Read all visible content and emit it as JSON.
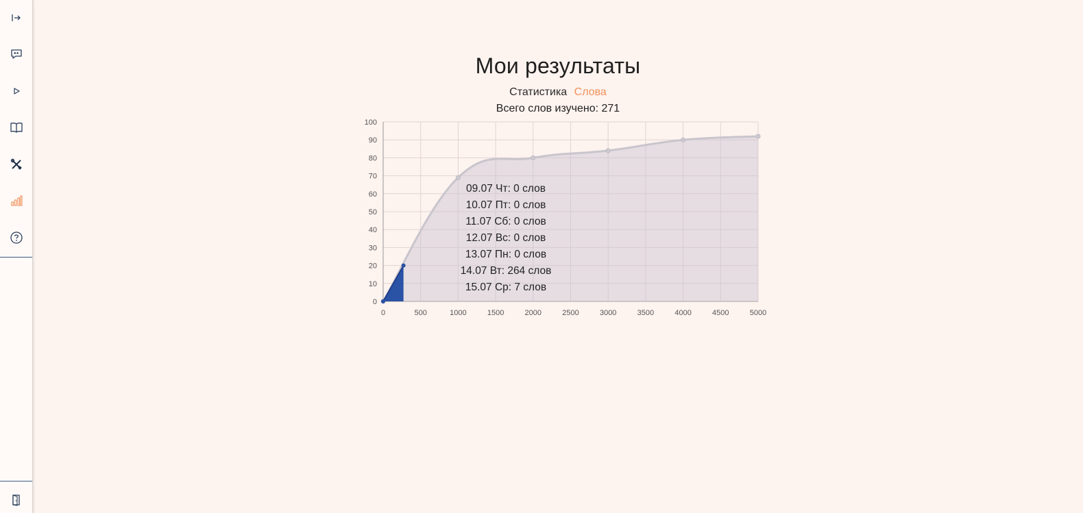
{
  "sidebar": {
    "items": [
      {
        "icon": "expand-sidebar-icon"
      },
      {
        "icon": "chat-quote-icon"
      },
      {
        "icon": "play-icon"
      },
      {
        "icon": "book-icon"
      },
      {
        "icon": "tools-icon"
      },
      {
        "icon": "bar-chart-icon",
        "active": true
      },
      {
        "icon": "help-icon"
      }
    ],
    "bottom": {
      "icon": "exit-door-icon"
    }
  },
  "colors": {
    "accent": "#f0925a",
    "primary": "#2a52a5",
    "sidebar_line": "#3a5a80"
  },
  "page": {
    "title": "Мои результаты",
    "tabs": [
      {
        "label": "Статистика",
        "active": false
      },
      {
        "label": "Слова",
        "active": true
      }
    ],
    "total_label": "Всего слов изучено: 271"
  },
  "chart_data": {
    "type": "area",
    "xlim": [
      0,
      5000
    ],
    "ylim": [
      0,
      100
    ],
    "x_ticks": [
      "0",
      "500",
      "1000",
      "1500",
      "2000",
      "2500",
      "3000",
      "3500",
      "4000",
      "4500",
      "5000"
    ],
    "y_ticks": [
      "0",
      "10",
      "20",
      "30",
      "40",
      "50",
      "60",
      "70",
      "80",
      "90",
      "100"
    ],
    "grid": true,
    "series": [
      {
        "kind": "reference-curve",
        "color": "#c9c5cc",
        "points": [
          [
            0,
            0
          ],
          [
            1000,
            69
          ],
          [
            2000,
            80
          ],
          [
            3000,
            84
          ],
          [
            4000,
            90
          ],
          [
            5000,
            92
          ]
        ]
      },
      {
        "kind": "user-progress",
        "color": "#2a52a5",
        "points": [
          [
            0,
            0
          ],
          [
            271,
            20
          ]
        ]
      }
    ],
    "tooltip": [
      "09.07 Чт: 0 слов",
      "10.07 Пт: 0 слов",
      "11.07 Сб: 0 слов",
      "12.07 Вс: 0 слов",
      "13.07 Пн: 0 слов",
      "14.07 Вт: 264 слов",
      "15.07 Ср: 7 слов"
    ]
  }
}
